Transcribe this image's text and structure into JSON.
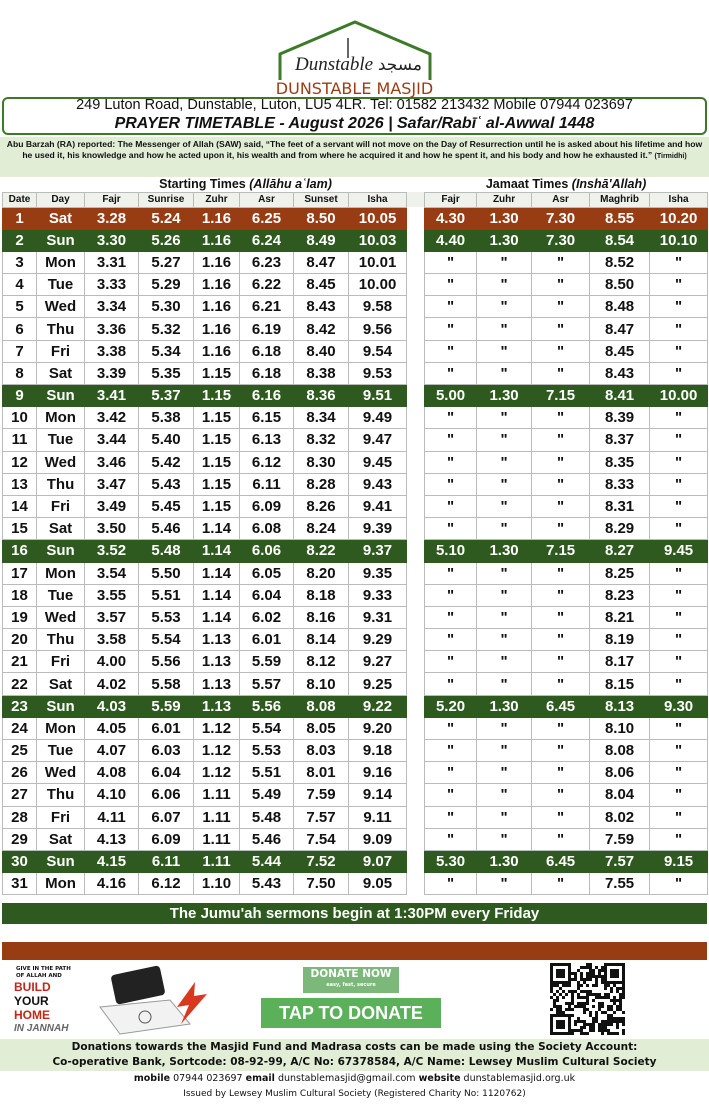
{
  "header": {
    "logo": "Dunstable",
    "logo_arabic": "مسجد",
    "name": "DUNSTABLE MASJID",
    "address": "249 Luton Road, Dunstable, Luton, LU5 4LR. Tel: 01582 213432 Mobile 07944 023697",
    "title": "PRAYER TIMETABLE - August 2026 | Safar/Rabīʿ al-Awwal 1448"
  },
  "hadith": {
    "text": "Abu Barzah (RA) reported: The Messenger of Allah (SAW) said, “The feet of a servant will not move on the Day of Resurrection until he is asked about his lifetime and how he used it, his knowledge and how he acted upon it, his wealth and from where he acquired it and how he spent it, and his body and how he exhausted it.”",
    "source": "(Tirmidhi)"
  },
  "table": {
    "starting": {
      "label": "Starting Times",
      "note": "(Allāhu aʿlam)"
    },
    "jamaat": {
      "label": "Jamaat Times",
      "note": "(Inshā'Allah)"
    },
    "columns": [
      "Date",
      "Day",
      "Fajr",
      "Sunrise",
      "Zuhr",
      "Asr",
      "Sunset",
      "Isha",
      "Fajr",
      "Zuhr",
      "Asr",
      "Maghrib",
      "Isha"
    ],
    "rows": [
      [
        "1",
        "Sat",
        "3.28",
        "5.24",
        "1.16",
        "6.25",
        "8.50",
        "10.05",
        "4.30",
        "1.30",
        "7.30",
        "8.55",
        "10.20"
      ],
      [
        "2",
        "Sun",
        "3.30",
        "5.26",
        "1.16",
        "6.24",
        "8.49",
        "10.03",
        "4.40",
        "1.30",
        "7.30",
        "8.54",
        "10.10"
      ],
      [
        "3",
        "Mon",
        "3.31",
        "5.27",
        "1.16",
        "6.23",
        "8.47",
        "10.01",
        "\"",
        "\"",
        "\"",
        "8.52",
        "\""
      ],
      [
        "4",
        "Tue",
        "3.33",
        "5.29",
        "1.16",
        "6.22",
        "8.45",
        "10.00",
        "\"",
        "\"",
        "\"",
        "8.50",
        "\""
      ],
      [
        "5",
        "Wed",
        "3.34",
        "5.30",
        "1.16",
        "6.21",
        "8.43",
        "9.58",
        "\"",
        "\"",
        "\"",
        "8.48",
        "\""
      ],
      [
        "6",
        "Thu",
        "3.36",
        "5.32",
        "1.16",
        "6.19",
        "8.42",
        "9.56",
        "\"",
        "\"",
        "\"",
        "8.47",
        "\""
      ],
      [
        "7",
        "Fri",
        "3.38",
        "5.34",
        "1.16",
        "6.18",
        "8.40",
        "9.54",
        "\"",
        "\"",
        "\"",
        "8.45",
        "\""
      ],
      [
        "8",
        "Sat",
        "3.39",
        "5.35",
        "1.15",
        "6.18",
        "8.38",
        "9.53",
        "\"",
        "\"",
        "\"",
        "8.43",
        "\""
      ],
      [
        "9",
        "Sun",
        "3.41",
        "5.37",
        "1.15",
        "6.16",
        "8.36",
        "9.51",
        "5.00",
        "1.30",
        "7.15",
        "8.41",
        "10.00"
      ],
      [
        "10",
        "Mon",
        "3.42",
        "5.38",
        "1.15",
        "6.15",
        "8.34",
        "9.49",
        "\"",
        "\"",
        "\"",
        "8.39",
        "\""
      ],
      [
        "11",
        "Tue",
        "3.44",
        "5.40",
        "1.15",
        "6.13",
        "8.32",
        "9.47",
        "\"",
        "\"",
        "\"",
        "8.37",
        "\""
      ],
      [
        "12",
        "Wed",
        "3.46",
        "5.42",
        "1.15",
        "6.12",
        "8.30",
        "9.45",
        "\"",
        "\"",
        "\"",
        "8.35",
        "\""
      ],
      [
        "13",
        "Thu",
        "3.47",
        "5.43",
        "1.15",
        "6.11",
        "8.28",
        "9.43",
        "\"",
        "\"",
        "\"",
        "8.33",
        "\""
      ],
      [
        "14",
        "Fri",
        "3.49",
        "5.45",
        "1.15",
        "6.09",
        "8.26",
        "9.41",
        "\"",
        "\"",
        "\"",
        "8.31",
        "\""
      ],
      [
        "15",
        "Sat",
        "3.50",
        "5.46",
        "1.14",
        "6.08",
        "8.24",
        "9.39",
        "\"",
        "\"",
        "\"",
        "8.29",
        "\""
      ],
      [
        "16",
        "Sun",
        "3.52",
        "5.48",
        "1.14",
        "6.06",
        "8.22",
        "9.37",
        "5.10",
        "1.30",
        "7.15",
        "8.27",
        "9.45"
      ],
      [
        "17",
        "Mon",
        "3.54",
        "5.50",
        "1.14",
        "6.05",
        "8.20",
        "9.35",
        "\"",
        "\"",
        "\"",
        "8.25",
        "\""
      ],
      [
        "18",
        "Tue",
        "3.55",
        "5.51",
        "1.14",
        "6.04",
        "8.18",
        "9.33",
        "\"",
        "\"",
        "\"",
        "8.23",
        "\""
      ],
      [
        "19",
        "Wed",
        "3.57",
        "5.53",
        "1.14",
        "6.02",
        "8.16",
        "9.31",
        "\"",
        "\"",
        "\"",
        "8.21",
        "\""
      ],
      [
        "20",
        "Thu",
        "3.58",
        "5.54",
        "1.13",
        "6.01",
        "8.14",
        "9.29",
        "\"",
        "\"",
        "\"",
        "8.19",
        "\""
      ],
      [
        "21",
        "Fri",
        "4.00",
        "5.56",
        "1.13",
        "5.59",
        "8.12",
        "9.27",
        "\"",
        "\"",
        "\"",
        "8.17",
        "\""
      ],
      [
        "22",
        "Sat",
        "4.02",
        "5.58",
        "1.13",
        "5.57",
        "8.10",
        "9.25",
        "\"",
        "\"",
        "\"",
        "8.15",
        "\""
      ],
      [
        "23",
        "Sun",
        "4.03",
        "5.59",
        "1.13",
        "5.56",
        "8.08",
        "9.22",
        "5.20",
        "1.30",
        "6.45",
        "8.13",
        "9.30"
      ],
      [
        "24",
        "Mon",
        "4.05",
        "6.01",
        "1.12",
        "5.54",
        "8.05",
        "9.20",
        "\"",
        "\"",
        "\"",
        "8.10",
        "\""
      ],
      [
        "25",
        "Tue",
        "4.07",
        "6.03",
        "1.12",
        "5.53",
        "8.03",
        "9.18",
        "\"",
        "\"",
        "\"",
        "8.08",
        "\""
      ],
      [
        "26",
        "Wed",
        "4.08",
        "6.04",
        "1.12",
        "5.51",
        "8.01",
        "9.16",
        "\"",
        "\"",
        "\"",
        "8.06",
        "\""
      ],
      [
        "27",
        "Thu",
        "4.10",
        "6.06",
        "1.11",
        "5.49",
        "7.59",
        "9.14",
        "\"",
        "\"",
        "\"",
        "8.04",
        "\""
      ],
      [
        "28",
        "Fri",
        "4.11",
        "6.07",
        "1.11",
        "5.48",
        "7.57",
        "9.11",
        "\"",
        "\"",
        "\"",
        "8.02",
        "\""
      ],
      [
        "29",
        "Sat",
        "4.13",
        "6.09",
        "1.11",
        "5.46",
        "7.54",
        "9.09",
        "\"",
        "\"",
        "\"",
        "7.59",
        "\""
      ],
      [
        "30",
        "Sun",
        "4.15",
        "6.11",
        "1.11",
        "5.44",
        "7.52",
        "9.07",
        "5.30",
        "1.30",
        "6.45",
        "7.57",
        "9.15"
      ],
      [
        "31",
        "Mon",
        "4.16",
        "6.12",
        "1.10",
        "5.43",
        "7.50",
        "9.05",
        "\"",
        "\"",
        "\"",
        "7.55",
        "\""
      ]
    ]
  },
  "jumuah": "The Jumu'ah sermons begin at 1:30PM every Friday",
  "promo": {
    "line1": "GIVE IN THE PATH",
    "line2": "OF ALLAH AND",
    "build": "BUILD",
    "your": "YOUR",
    "home": "HOME",
    "jannah": "IN JANNAH"
  },
  "donate": {
    "now": "DONATE NOW",
    "tagline": "easy, fast, secure",
    "tap": "TAP TO DONATE"
  },
  "account": {
    "line1": "Donations towards the Masjid Fund and Madrasa costs can be made using the Society Account:",
    "line2": "Co-operative Bank, Sortcode: 08-92-99, A/C No: 67378584, A/C Name: Lewsey Muslim Cultural Society"
  },
  "contact": {
    "mobile_label": "mobile",
    "mobile": "07944 023697",
    "email_label": "email",
    "email": "dunstablemasjid@gmail.com",
    "website_label": "website",
    "website": "dunstablemasjid.org.uk"
  },
  "issued": "Issued by Lewsey Muslim Cultural Society (Registered Charity No: 1120762)"
}
